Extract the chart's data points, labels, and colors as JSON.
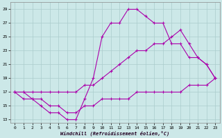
{
  "xlabel": "Windchill (Refroidissement éolien,°C)",
  "bg_color": "#cce8e8",
  "line_color": "#aa00aa",
  "grid_color": "#aacccc",
  "xlim": [
    -0.5,
    23.5
  ],
  "ylim": [
    12.5,
    30.0
  ],
  "xticks": [
    0,
    1,
    2,
    3,
    4,
    5,
    6,
    7,
    8,
    9,
    10,
    11,
    12,
    13,
    14,
    15,
    16,
    17,
    18,
    19,
    20,
    21,
    22,
    23
  ],
  "yticks": [
    13,
    15,
    17,
    19,
    21,
    23,
    25,
    27,
    29
  ],
  "curve1_x": [
    0,
    1,
    2,
    3,
    4,
    5,
    6,
    7,
    8,
    9,
    10,
    11,
    12,
    13,
    14,
    15,
    16,
    17,
    18,
    19,
    20,
    21,
    22,
    23
  ],
  "curve1_y": [
    17,
    17,
    16,
    15,
    14,
    14,
    13,
    13,
    16,
    19,
    25,
    27,
    27,
    29,
    29,
    28,
    27,
    27,
    24,
    24,
    22,
    22,
    21,
    19
  ],
  "curve2_x": [
    0,
    1,
    2,
    3,
    4,
    5,
    6,
    7,
    8,
    9,
    10,
    11,
    12,
    13,
    14,
    15,
    16,
    17,
    18,
    19,
    20,
    21,
    22,
    23
  ],
  "curve2_y": [
    17,
    17,
    17,
    17,
    17,
    17,
    17,
    17,
    18,
    18,
    19,
    20,
    21,
    22,
    23,
    23,
    24,
    24,
    25,
    26,
    24,
    22,
    21,
    19
  ],
  "curve3_x": [
    0,
    1,
    2,
    3,
    4,
    5,
    6,
    7,
    8,
    9,
    10,
    11,
    12,
    13,
    14,
    15,
    16,
    17,
    18,
    19,
    20,
    21,
    22,
    23
  ],
  "curve3_y": [
    17,
    16,
    16,
    16,
    15,
    15,
    14,
    14,
    15,
    15,
    16,
    16,
    16,
    16,
    17,
    17,
    17,
    17,
    17,
    17,
    18,
    18,
    18,
    19
  ]
}
